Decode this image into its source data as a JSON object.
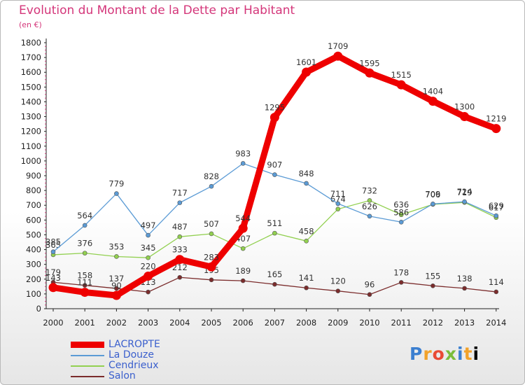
{
  "header": {
    "title": "Evolution du Montant de la Dette par Habitant",
    "unit": "(en €)"
  },
  "brand": [
    "P",
    "r",
    "o",
    "x",
    "i",
    "t",
    "i"
  ],
  "chart_data": {
    "type": "line",
    "x": [
      "2000",
      "2001",
      "2002",
      "2003",
      "2004",
      "2005",
      "2006",
      "2007",
      "2008",
      "2009",
      "2010",
      "2011",
      "2012",
      "2013",
      "2014"
    ],
    "ylim": [
      0,
      1800
    ],
    "yticks": [
      0,
      100,
      200,
      300,
      400,
      500,
      600,
      700,
      800,
      900,
      1000,
      1100,
      1200,
      1300,
      1400,
      1500,
      1600,
      1700,
      1800
    ],
    "grid": false,
    "legend_position": "bottom-left",
    "series": [
      {
        "name": "LACROPTE",
        "color": "#ee0000",
        "values": [
          143,
          111,
          90,
          220,
          333,
          283,
          544,
          1295,
          1601,
          1709,
          1595,
          1515,
          1404,
          1300,
          1219
        ],
        "labels": [
          "143",
          "111",
          "90",
          "220",
          "333",
          "283",
          "544",
          "1295",
          "1601",
          "1709",
          "1595",
          "1515",
          "1404",
          "1300",
          "1219"
        ]
      },
      {
        "name": "La Douze",
        "color": "#5b9bd5",
        "values": [
          385,
          564,
          779,
          497,
          717,
          828,
          983,
          907,
          848,
          711,
          626,
          586,
          709,
          724,
          629
        ],
        "labels": [
          "385",
          "564",
          "779",
          "497",
          "717",
          "828",
          "983",
          "907",
          "848",
          "711",
          "626",
          "586",
          "709",
          "724",
          "629"
        ]
      },
      {
        "name": "Cendrieux",
        "color": "#92d050",
        "values": [
          365,
          376,
          353,
          345,
          487,
          507,
          407,
          511,
          458,
          674,
          732,
          636,
          706,
          719,
          617
        ],
        "labels": [
          "365",
          "376",
          "353",
          "345",
          "487",
          "507",
          "407",
          "511",
          "458",
          "674",
          "732",
          "636",
          "706",
          "719",
          "617"
        ]
      },
      {
        "name": "Salon",
        "color": "#7b2c2c",
        "values": [
          179,
          158,
          137,
          113,
          212,
          195,
          189,
          165,
          141,
          120,
          96,
          178,
          155,
          138,
          114
        ],
        "labels": [
          "179",
          "158",
          "137",
          "113",
          "212",
          "195",
          "189",
          "165",
          "141",
          "120",
          "96",
          "178",
          "155",
          "138",
          "114"
        ]
      }
    ]
  }
}
